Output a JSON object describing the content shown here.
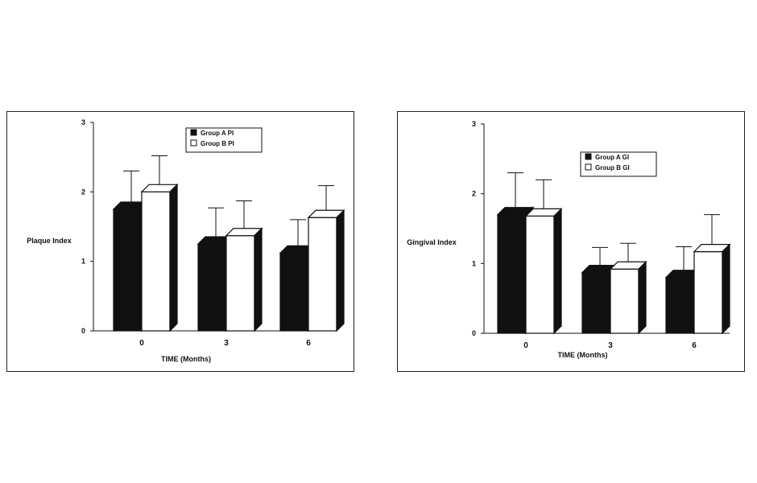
{
  "chart_data": [
    {
      "type": "bar",
      "title": "",
      "xlabel": "TIME (Months)",
      "ylabel": "Plaque Index",
      "ylim": [
        0,
        3
      ],
      "yticks": [
        "0",
        "1",
        "2",
        "3"
      ],
      "categories": [
        "0",
        "3",
        "6"
      ],
      "grid": false,
      "legend_position": "top-center",
      "style": "3d-bars-with-error-bars",
      "series": [
        {
          "name": "Group A PI",
          "color": "#111111",
          "values": [
            1.75,
            1.25,
            1.12
          ],
          "errors": [
            0.55,
            0.52,
            0.48
          ]
        },
        {
          "name": "Group B PI",
          "color": "#ffffff",
          "values": [
            2.0,
            1.37,
            1.63
          ],
          "errors": [
            0.52,
            0.5,
            0.46
          ]
        }
      ]
    },
    {
      "type": "bar",
      "title": "",
      "xlabel": "TIME (Months)",
      "ylabel": "Gingival Index",
      "ylim": [
        0,
        3
      ],
      "yticks": [
        "0",
        "1",
        "2",
        "3"
      ],
      "categories": [
        "0",
        "3",
        "6"
      ],
      "grid": false,
      "legend_position": "top-center",
      "style": "3d-bars-with-error-bars",
      "series": [
        {
          "name": "Group A GI",
          "color": "#111111",
          "values": [
            1.7,
            0.87,
            0.8
          ],
          "errors": [
            0.6,
            0.36,
            0.44
          ]
        },
        {
          "name": "Group B GI",
          "color": "#ffffff",
          "values": [
            1.68,
            0.92,
            1.17
          ],
          "errors": [
            0.52,
            0.37,
            0.53
          ]
        }
      ]
    }
  ]
}
